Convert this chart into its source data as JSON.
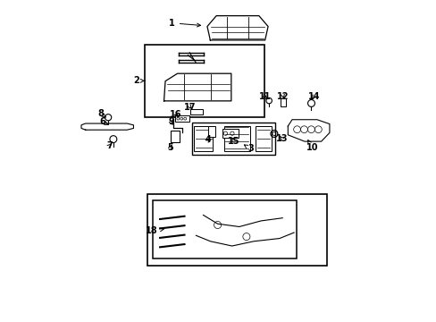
{
  "background_color": "#ffffff",
  "line_color": "#000000",
  "figsize": [
    4.89,
    3.6
  ],
  "dpi": 100,
  "label_data": [
    [
      1,
      0.355,
      0.93,
      0.455,
      0.922
    ],
    [
      2,
      0.245,
      0.75,
      0.278,
      0.75
    ],
    [
      3,
      0.6,
      0.538,
      0.578,
      0.552
    ],
    [
      4,
      0.468,
      0.566,
      0.478,
      0.578
    ],
    [
      5,
      0.35,
      0.542,
      0.358,
      0.558
    ],
    [
      6,
      0.138,
      0.622,
      0.158,
      0.612
    ],
    [
      7,
      0.16,
      0.548,
      0.172,
      0.56
    ],
    [
      8,
      0.132,
      0.648,
      0.15,
      0.636
    ],
    [
      9,
      0.352,
      0.622,
      0.358,
      0.612
    ],
    [
      10,
      0.792,
      0.542,
      0.778,
      0.568
    ],
    [
      11,
      0.645,
      0.702,
      0.658,
      0.692
    ],
    [
      12,
      0.702,
      0.702,
      0.704,
      0.694
    ],
    [
      13,
      0.698,
      0.57,
      0.686,
      0.584
    ],
    [
      14,
      0.798,
      0.702,
      0.792,
      0.692
    ],
    [
      15,
      0.548,
      0.562,
      0.542,
      0.574
    ],
    [
      16,
      0.368,
      0.646,
      0.382,
      0.636
    ],
    [
      17,
      0.412,
      0.668,
      0.422,
      0.656
    ],
    [
      18,
      0.292,
      0.282,
      0.332,
      0.288
    ]
  ]
}
